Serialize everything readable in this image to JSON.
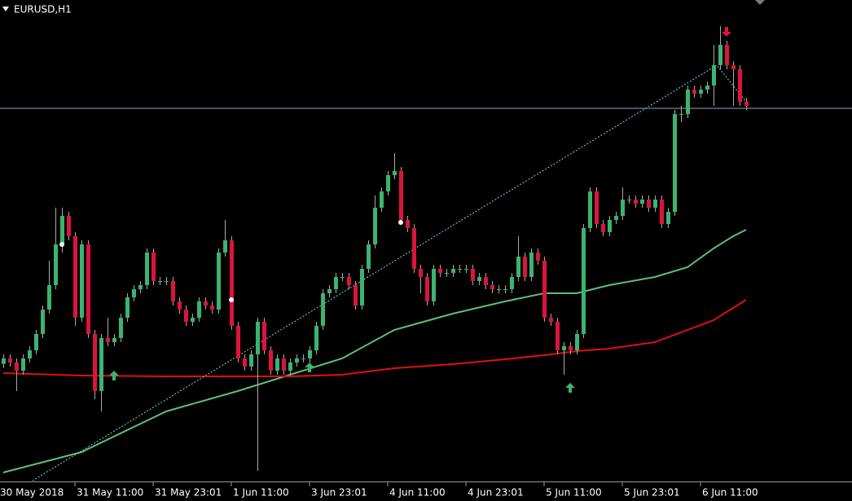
{
  "chart_data": {
    "type": "candlestick",
    "title": "EURUSD,H1",
    "bull_color": "#3cb371",
    "bear_color": "#dc143c",
    "wick_color": "#a9a9a9",
    "xlim": [
      -0.5,
      130.25
    ],
    "ylim": [
      1.1633,
      1.181
    ],
    "grid": false,
    "xticks": [
      {
        "value": -1,
        "label": "30 May 2018"
      },
      {
        "value": 11,
        "label": "31 May 11:00"
      },
      {
        "value": 23,
        "label": "31 May 23:01"
      },
      {
        "value": 35,
        "label": "1 Jun 11:00"
      },
      {
        "value": 47,
        "label": "3 Jun 23:01"
      },
      {
        "value": 59,
        "label": "4 Jun 11:00"
      },
      {
        "value": 71,
        "label": "4 Jun 23:01"
      },
      {
        "value": 83,
        "label": "5 Jun 11:00"
      },
      {
        "value": 95,
        "label": "5 Jun 23:01"
      },
      {
        "value": 107,
        "label": "6 Jun 11:00"
      }
    ],
    "open": [
      1.1676,
      1.1678,
      1.16765,
      1.16735,
      1.1678,
      1.1681,
      1.1687,
      1.1696,
      1.1705,
      1.172,
      1.17305,
      1.1723,
      1.1693,
      1.172,
      1.1687,
      1.1666,
      1.16855,
      1.1684,
      1.16855,
      1.1693,
      1.17005,
      1.17035,
      1.1705,
      1.1717,
      1.17065,
      1.17065,
      1.17065,
      1.1699,
      1.1696,
      1.16915,
      1.1693,
      1.1699,
      1.16975,
      1.1696,
      1.1717,
      1.17215,
      1.169,
      1.1678,
      1.1675,
      1.16795,
      1.16915,
      1.1681,
      1.16735,
      1.1678,
      1.16735,
      1.16765,
      1.1678,
      1.1678,
      1.1681,
      1.169,
      1.1702,
      1.17035,
      1.1708,
      1.1708,
      1.1705,
      1.16975,
      1.1711,
      1.172,
      1.17335,
      1.17395,
      1.17455,
      1.1747,
      1.1729,
      1.1726,
      1.1711,
      1.1708,
      1.1699,
      1.1711,
      1.17095,
      1.17095,
      1.1711,
      1.1711,
      1.1711,
      1.17065,
      1.1708,
      1.1705,
      1.17035,
      1.17035,
      1.17035,
      1.1708,
      1.17155,
      1.1708,
      1.1717,
      1.1714,
      1.1693,
      1.16915,
      1.1681,
      1.16825,
      1.1681,
      1.1687,
      1.1726,
      1.17395,
      1.17275,
      1.17245,
      1.1729,
      1.17305,
      1.17365,
      1.17365,
      1.1735,
      1.17365,
      1.17335,
      1.17365,
      1.17275,
      1.1732,
      1.1768,
      1.1768,
      1.1777,
      1.17755,
      1.1777,
      1.17785,
      1.1786,
      1.17935,
      1.1786,
      1.17845,
      1.17725
    ],
    "high": [
      1.16795,
      1.16795,
      1.1678,
      1.16795,
      1.16825,
      1.16885,
      1.16975,
      1.1714,
      1.17335,
      1.17335,
      1.1732,
      1.17245,
      1.17215,
      1.17215,
      1.16885,
      1.1687,
      1.1693,
      1.1687,
      1.16945,
      1.1702,
      1.1705,
      1.17065,
      1.17185,
      1.17185,
      1.1708,
      1.1708,
      1.1708,
      1.17005,
      1.16975,
      1.16945,
      1.17005,
      1.17005,
      1.1699,
      1.17185,
      1.1729,
      1.1723,
      1.16915,
      1.16795,
      1.1681,
      1.1693,
      1.1693,
      1.16825,
      1.16795,
      1.16795,
      1.1678,
      1.16795,
      1.16795,
      1.16825,
      1.16915,
      1.17035,
      1.1705,
      1.17095,
      1.17095,
      1.17095,
      1.17065,
      1.17125,
      1.17215,
      1.1738,
      1.1741,
      1.1747,
      1.17536,
      1.17485,
      1.17305,
      1.17275,
      1.17125,
      1.17095,
      1.17125,
      1.17125,
      1.1711,
      1.17125,
      1.17125,
      1.17125,
      1.17125,
      1.17095,
      1.17095,
      1.17065,
      1.1705,
      1.1705,
      1.17095,
      1.1723,
      1.1717,
      1.17185,
      1.17185,
      1.17155,
      1.16945,
      1.1693,
      1.1684,
      1.1684,
      1.16885,
      1.17275,
      1.1741,
      1.1741,
      1.1729,
      1.17305,
      1.1732,
      1.1741,
      1.1738,
      1.1738,
      1.1738,
      1.1738,
      1.1738,
      1.1738,
      1.17335,
      1.17695,
      1.1771,
      1.17785,
      1.17785,
      1.17785,
      1.178,
      1.17935,
      1.18004,
      1.1795,
      1.17875,
      1.1786,
      1.1774
    ],
    "low": [
      1.16745,
      1.1675,
      1.1666,
      1.1672,
      1.16765,
      1.16795,
      1.16855,
      1.16945,
      1.17035,
      1.1717,
      1.17215,
      1.169,
      1.16915,
      1.16855,
      1.1663,
      1.16585,
      1.16825,
      1.16825,
      1.1684,
      1.16915,
      1.1699,
      1.1702,
      1.17035,
      1.1705,
      1.1705,
      1.1705,
      1.16975,
      1.16945,
      1.169,
      1.169,
      1.16915,
      1.1696,
      1.16945,
      1.16945,
      1.17155,
      1.16885,
      1.16765,
      1.16735,
      1.16735,
      1.16366,
      1.16795,
      1.1672,
      1.1672,
      1.1672,
      1.1672,
      1.1675,
      1.16765,
      1.16765,
      1.16795,
      1.16885,
      1.17005,
      1.1702,
      1.17065,
      1.17035,
      1.1696,
      1.1696,
      1.17095,
      1.17185,
      1.1732,
      1.1738,
      1.1744,
      1.17275,
      1.17245,
      1.17095,
      1.1702,
      1.16975,
      1.16975,
      1.1708,
      1.1708,
      1.1708,
      1.17095,
      1.17095,
      1.1705,
      1.1705,
      1.17035,
      1.1702,
      1.1702,
      1.1702,
      1.1702,
      1.17065,
      1.17065,
      1.17065,
      1.17125,
      1.16915,
      1.169,
      1.16795,
      1.1672,
      1.16795,
      1.16795,
      1.16855,
      1.17245,
      1.1726,
      1.1723,
      1.1723,
      1.17275,
      1.1729,
      1.1735,
      1.17335,
      1.17335,
      1.1732,
      1.1732,
      1.1726,
      1.1726,
      1.17305,
      1.1765,
      1.17665,
      1.1774,
      1.1774,
      1.17755,
      1.1771,
      1.17845,
      1.17845,
      1.1771,
      1.1771,
      1.17695
    ],
    "close": [
      1.1678,
      1.16765,
      1.16735,
      1.1678,
      1.1681,
      1.1687,
      1.1696,
      1.1705,
      1.172,
      1.17305,
      1.1723,
      1.1693,
      1.172,
      1.1687,
      1.1666,
      1.16855,
      1.1684,
      1.16855,
      1.1693,
      1.17005,
      1.17035,
      1.1705,
      1.1717,
      1.17065,
      1.17065,
      1.17065,
      1.1699,
      1.1696,
      1.16915,
      1.1693,
      1.1699,
      1.16975,
      1.1696,
      1.1717,
      1.17215,
      1.169,
      1.1678,
      1.1675,
      1.16795,
      1.16915,
      1.1681,
      1.16735,
      1.1678,
      1.16735,
      1.16765,
      1.1678,
      1.1678,
      1.1681,
      1.169,
      1.1702,
      1.17035,
      1.1708,
      1.1708,
      1.1705,
      1.16975,
      1.1711,
      1.172,
      1.17335,
      1.17395,
      1.17455,
      1.1747,
      1.1729,
      1.1726,
      1.1711,
      1.1708,
      1.1699,
      1.1711,
      1.17095,
      1.17095,
      1.1711,
      1.1711,
      1.1711,
      1.17065,
      1.1708,
      1.1705,
      1.17035,
      1.17035,
      1.17035,
      1.1708,
      1.17155,
      1.1708,
      1.1717,
      1.1714,
      1.1693,
      1.16915,
      1.1681,
      1.16825,
      1.1681,
      1.1687,
      1.1726,
      1.17395,
      1.17275,
      1.17245,
      1.1729,
      1.17305,
      1.17365,
      1.17365,
      1.1735,
      1.17365,
      1.17335,
      1.17365,
      1.17275,
      1.1732,
      1.1768,
      1.1768,
      1.1777,
      1.17755,
      1.1777,
      1.17785,
      1.1786,
      1.17935,
      1.1786,
      1.17845,
      1.17725,
      1.1771
    ],
    "moving_averages": [
      {
        "color": "#5fbf7a",
        "x": [
          0,
          12,
          25,
          36,
          44,
          52,
          60,
          69,
          77,
          83,
          88,
          93,
          100,
          105,
          109,
          112,
          114
        ],
        "values": [
          1.1636,
          1.16435,
          1.16585,
          1.1666,
          1.1672,
          1.1678,
          1.16885,
          1.16945,
          1.1699,
          1.1702,
          1.1702,
          1.1705,
          1.1708,
          1.17116,
          1.17185,
          1.1723,
          1.17254
        ]
      },
      {
        "color": "#e01010",
        "x": [
          0,
          12,
          25,
          36,
          44,
          52,
          60,
          69,
          77,
          83,
          88,
          93,
          100,
          105,
          109,
          112,
          114
        ],
        "values": [
          1.16726,
          1.16717,
          1.16714,
          1.16714,
          1.16714,
          1.1672,
          1.16744,
          1.16759,
          1.16777,
          1.16792,
          1.16807,
          1.16816,
          1.1684,
          1.16885,
          1.16921,
          1.16966,
          1.16996
        ]
      }
    ],
    "trendline": {
      "color": "#7fd3e6",
      "x": [
        4.5,
        109.5,
        114
      ],
      "values": [
        1.1633,
        1.1786,
        1.17725
      ]
    },
    "horizontal_line": 1.17701,
    "horizontal_line_color": "#8fa3b8",
    "arrows": [
      {
        "x": 17,
        "value": 1.16735,
        "direction": "up",
        "color": "#3cb371"
      },
      {
        "x": 47,
        "value": 1.16765,
        "direction": "up",
        "color": "#3cb371"
      },
      {
        "x": 87,
        "value": 1.1669,
        "direction": "up",
        "color": "#3cb371"
      },
      {
        "x": 111,
        "value": 1.17965,
        "direction": "down",
        "color": "#dc143c"
      }
    ],
    "dots": {
      "color": "#ffffff",
      "x": [
        9,
        35,
        61
      ],
      "values": [
        1.172,
        1.16996,
        1.17281
      ]
    }
  }
}
